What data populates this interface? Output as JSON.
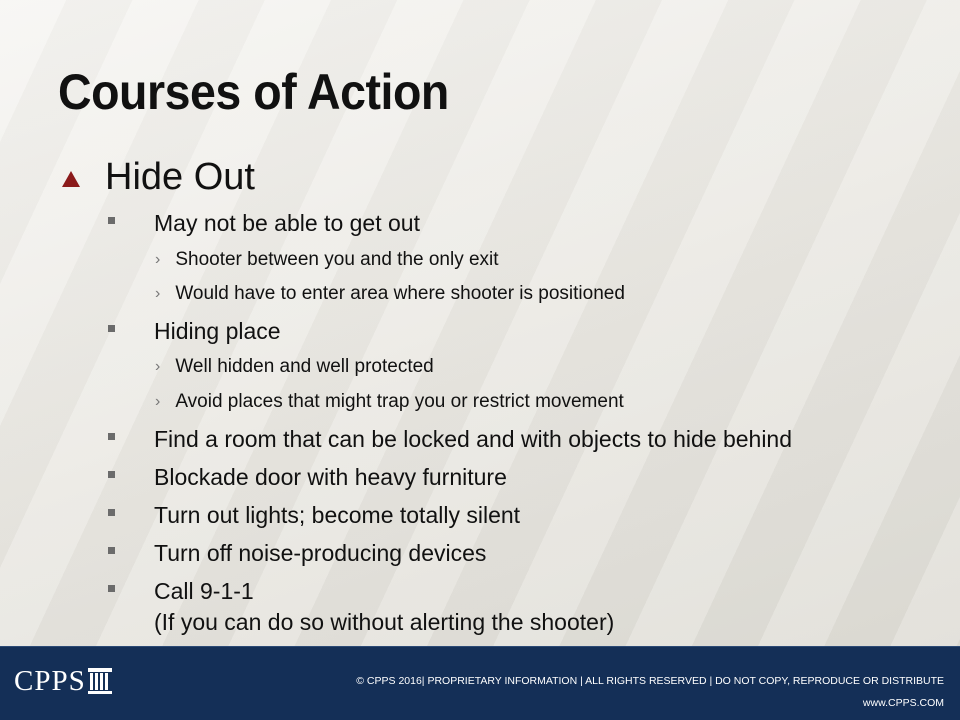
{
  "slide": {
    "title": "Courses of Action",
    "heading": "Hide Out",
    "items": [
      {
        "text": "May not be able to get out",
        "sub": [
          "Shooter between you and the only exit",
          "Would have to enter area where shooter is positioned"
        ]
      },
      {
        "text": "Hiding place",
        "sub": [
          "Well hidden and well protected",
          "Avoid places that might trap you or restrict movement"
        ]
      },
      {
        "text": "Find a room that can be locked and with objects to hide behind"
      },
      {
        "text": "Blockade door with heavy furniture"
      },
      {
        "text": "Turn out lights; become totally silent"
      },
      {
        "text": "Turn off noise-producing devices"
      },
      {
        "text": "Call 9-1-1",
        "text2": "(If you can do so without alerting the shooter)"
      }
    ]
  },
  "footer": {
    "logo_text": "CPPS",
    "copyright": "© CPPS 2016| PROPRIETARY INFORMATION | ALL RIGHTS RESERVED | DO NOT COPY, REPRODUCE OR DISTRIBUTE",
    "website": "www.CPPS.COM"
  },
  "colors": {
    "accent": "#8b1a1a",
    "footer_bg": "#142f57",
    "text": "#111111"
  },
  "icons": {
    "heading_bullet": "triangle-up",
    "level2_bullet": "square",
    "level3_bullet": "chevron-right"
  }
}
